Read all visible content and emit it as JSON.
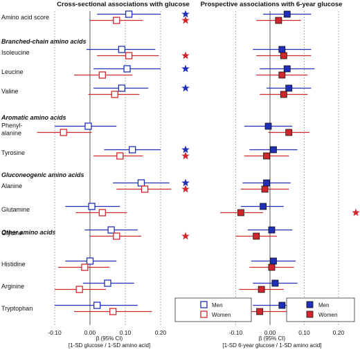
{
  "colors": {
    "men": "#1f2fb8",
    "women": "#d0272d",
    "grid": "#9a9a9a",
    "zero": "#555555"
  },
  "panels": {
    "left": {
      "title": "Cross-sectional associations with glucose",
      "xlabel_line1": "β (95% CI)",
      "xlabel_line2": "[1-SD glucose / 1-SD amino acid]",
      "xticks": [
        "-0.10",
        "0.00",
        "0.10",
        "0.20"
      ]
    },
    "right": {
      "title": "Prospective associations with 6-year glucose",
      "xlabel_line1": "β (95% CI)",
      "xlabel_line2": "[1-SD 6-year glucose / 1-SD amino acid]",
      "xticks": [
        "-0.10",
        "0.00",
        "0.10",
        "0.20"
      ]
    }
  },
  "legend": {
    "men": "Men",
    "women": "Women"
  },
  "groups": [
    "Branched-chain amino acids",
    "Aromatic amino acids",
    "Gluconeogenic amino acids",
    "Other amino acids"
  ],
  "chart_data": [
    {
      "type": "forest",
      "title": "Cross-sectional associations with glucose",
      "xlabel": "β (95% CI) [1-SD glucose / 1-SD amino acid]",
      "xlim": [
        -0.13,
        0.24
      ],
      "grid": "dotted vertical",
      "legend_position": "bottom-right",
      "rows": [
        {
          "label": "Amino acid score",
          "men": {
            "est": 0.11,
            "lo": 0.02,
            "hi": 0.2
          },
          "women": {
            "est": 0.075,
            "lo": 0.0,
            "hi": 0.15
          },
          "sig_men": true,
          "sig_women": true
        },
        {
          "label": "Isoleucine",
          "men": {
            "est": 0.09,
            "lo": -0.01,
            "hi": 0.185
          },
          "women": {
            "est": 0.11,
            "lo": 0.02,
            "hi": 0.195
          },
          "sig_men": false,
          "sig_women": true
        },
        {
          "label": "Leucine",
          "men": {
            "est": 0.105,
            "lo": 0.01,
            "hi": 0.2
          },
          "women": {
            "est": 0.035,
            "lo": -0.045,
            "hi": 0.12
          },
          "sig_men": true,
          "sig_women": false
        },
        {
          "label": "Valine",
          "men": {
            "est": 0.09,
            "lo": 0.01,
            "hi": 0.165
          },
          "women": {
            "est": 0.07,
            "lo": -0.005,
            "hi": 0.14
          },
          "sig_men": true,
          "sig_women": false
        },
        {
          "label": "Phenyl-alanine",
          "label_lines": [
            "Phenyl-",
            "alanine"
          ],
          "men": {
            "est": -0.005,
            "lo": -0.1,
            "hi": 0.075
          },
          "women": {
            "est": -0.075,
            "lo": -0.15,
            "hi": 0.005
          },
          "sig_men": false,
          "sig_women": false
        },
        {
          "label": "Tyrosine",
          "men": {
            "est": 0.12,
            "lo": 0.04,
            "hi": 0.2
          },
          "women": {
            "est": 0.085,
            "lo": 0.01,
            "hi": 0.15
          },
          "sig_men": true,
          "sig_women": true
        },
        {
          "label": "Alanine",
          "men": {
            "est": 0.145,
            "lo": 0.065,
            "hi": 0.225
          },
          "women": {
            "est": 0.155,
            "lo": 0.075,
            "hi": 0.23
          },
          "sig_men": true,
          "sig_women": true
        },
        {
          "label": "Glutamine",
          "men": {
            "est": 0.005,
            "lo": -0.07,
            "hi": 0.085
          },
          "women": {
            "est": 0.035,
            "lo": -0.04,
            "hi": 0.105
          },
          "sig_men": false,
          "sig_women": false
        },
        {
          "label": "Glycine",
          "men": {
            "est": 0.06,
            "lo": -0.015,
            "hi": 0.135
          },
          "women": {
            "est": 0.075,
            "lo": 0.0,
            "hi": 0.145
          },
          "sig_men": false,
          "sig_women": true
        },
        {
          "label": "Histidine",
          "men": {
            "est": 0.0,
            "lo": -0.07,
            "hi": 0.075
          },
          "women": {
            "est": -0.015,
            "lo": -0.09,
            "hi": 0.055
          },
          "sig_men": false,
          "sig_women": false
        },
        {
          "label": "Arginine",
          "men": {
            "est": 0.05,
            "lo": -0.02,
            "hi": 0.125
          },
          "women": {
            "est": -0.03,
            "lo": -0.1,
            "hi": 0.045
          },
          "sig_men": false,
          "sig_women": false
        },
        {
          "label": "Tryptophan",
          "men": {
            "est": 0.02,
            "lo": -0.1,
            "hi": 0.135
          },
          "women": {
            "est": 0.065,
            "lo": -0.045,
            "hi": 0.175
          },
          "sig_men": false,
          "sig_women": false
        }
      ]
    },
    {
      "type": "forest",
      "title": "Prospective associations with 6-year glucose",
      "xlabel": "β (95% CI) [1-SD 6-year glucose / 1-SD amino acid]",
      "xlim": [
        -0.15,
        0.245
      ],
      "grid": "dotted vertical",
      "legend_position": "bottom-right",
      "rows": [
        {
          "label": "Amino acid score",
          "men": {
            "est": 0.05,
            "lo": -0.02,
            "hi": 0.12
          },
          "women": {
            "est": 0.025,
            "lo": -0.04,
            "hi": 0.09
          },
          "sig_men": false,
          "sig_women": false
        },
        {
          "label": "Isoleucine",
          "men": {
            "est": 0.035,
            "lo": -0.05,
            "hi": 0.12
          },
          "women": {
            "est": 0.04,
            "lo": -0.04,
            "hi": 0.12
          },
          "sig_men": false,
          "sig_women": false
        },
        {
          "label": "Leucine",
          "men": {
            "est": 0.05,
            "lo": -0.03,
            "hi": 0.13
          },
          "women": {
            "est": 0.035,
            "lo": -0.04,
            "hi": 0.11
          },
          "sig_men": false,
          "sig_women": false
        },
        {
          "label": "Valine",
          "men": {
            "est": 0.055,
            "lo": -0.01,
            "hi": 0.12
          },
          "women": {
            "est": 0.04,
            "lo": -0.03,
            "hi": 0.11
          },
          "sig_men": false,
          "sig_women": false
        },
        {
          "label": "Phenyl-alanine",
          "men": {
            "est": -0.005,
            "lo": -0.075,
            "hi": 0.065
          },
          "women": {
            "est": 0.055,
            "lo": -0.005,
            "hi": 0.115
          },
          "sig_men": false,
          "sig_women": false
        },
        {
          "label": "Tyrosine",
          "men": {
            "est": 0.01,
            "lo": -0.06,
            "hi": 0.08
          },
          "women": {
            "est": -0.01,
            "lo": -0.075,
            "hi": 0.055
          },
          "sig_men": false,
          "sig_women": false
        },
        {
          "label": "Alanine",
          "men": {
            "est": -0.01,
            "lo": -0.08,
            "hi": 0.06
          },
          "women": {
            "est": -0.015,
            "lo": -0.085,
            "hi": 0.055
          },
          "sig_men": false,
          "sig_women": false
        },
        {
          "label": "Glutamine",
          "men": {
            "est": -0.02,
            "lo": -0.085,
            "hi": 0.04
          },
          "women": {
            "est": -0.085,
            "lo": -0.145,
            "hi": -0.02
          },
          "sig_men": false,
          "sig_women": true
        },
        {
          "label": "Glycine",
          "men": {
            "est": 0.005,
            "lo": -0.065,
            "hi": 0.065
          },
          "women": {
            "est": -0.04,
            "lo": -0.1,
            "hi": 0.02
          },
          "sig_men": false,
          "sig_women": false
        },
        {
          "label": "Histidine",
          "men": {
            "est": 0.01,
            "lo": -0.055,
            "hi": 0.075
          },
          "women": {
            "est": 0.005,
            "lo": -0.06,
            "hi": 0.07
          },
          "sig_men": false,
          "sig_women": false
        },
        {
          "label": "Arginine",
          "men": {
            "est": 0.015,
            "lo": -0.05,
            "hi": 0.08
          },
          "women": {
            "est": -0.025,
            "lo": -0.09,
            "hi": 0.04
          },
          "sig_men": false,
          "sig_women": false
        },
        {
          "label": "Tryptophan",
          "men": {
            "est": 0.035,
            "lo": -0.05,
            "hi": 0.12
          },
          "women": {
            "est": -0.03,
            "lo": -0.13,
            "hi": 0.065
          },
          "sig_men": false,
          "sig_women": false
        }
      ]
    }
  ]
}
